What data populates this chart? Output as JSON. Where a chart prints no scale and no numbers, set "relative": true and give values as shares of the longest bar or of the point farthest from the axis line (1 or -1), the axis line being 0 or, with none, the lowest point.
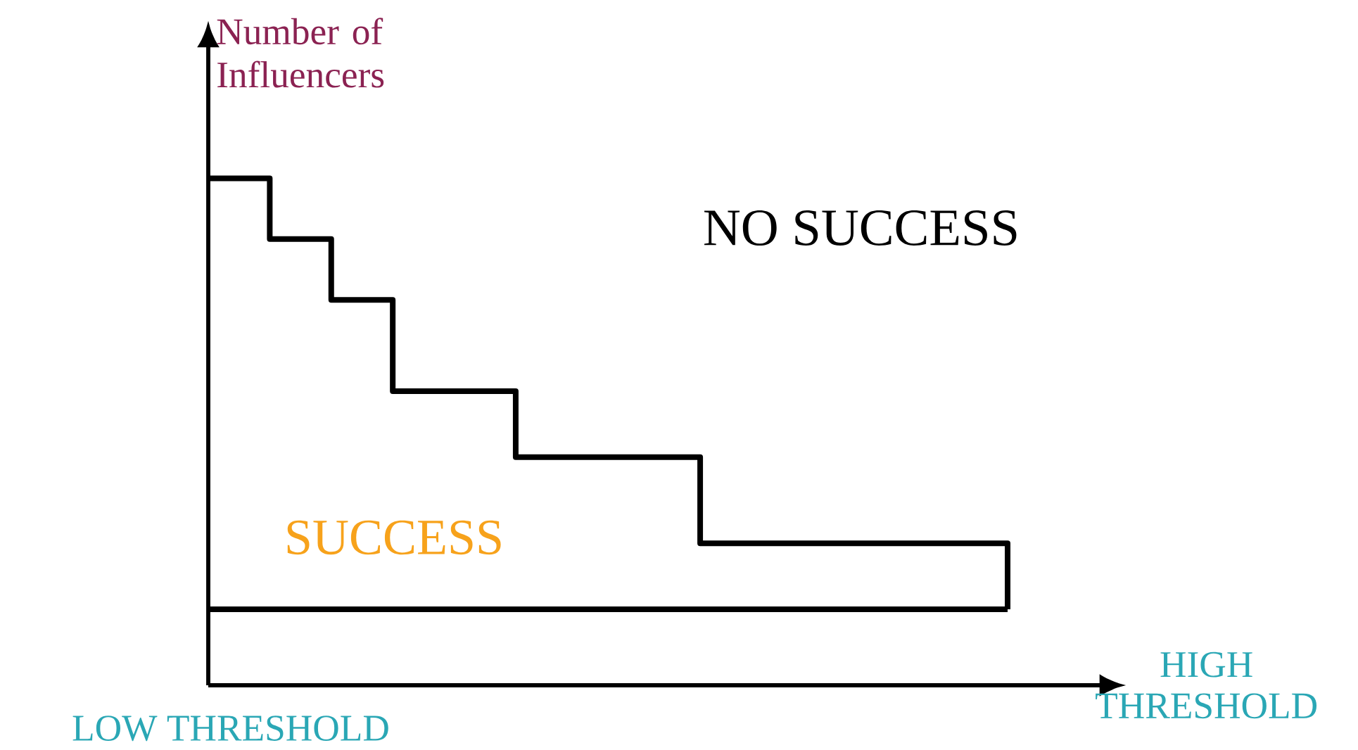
{
  "chart_data": {
    "type": "step",
    "relative": true,
    "xlabel": "HIGH THRESHOLD",
    "ylabel": "Number of Influencers",
    "categories": [
      null,
      null,
      null,
      null,
      null,
      null,
      null,
      null,
      null,
      null,
      null,
      null,
      null,
      null
    ],
    "series": [
      {
        "color": "#000000",
        "values": [
          1,
          0.88,
          0.76,
          0.58,
          0.58,
          0.45,
          0.45,
          0.45,
          0.28,
          0.28,
          0.28,
          0.28,
          0.28,
          0.15
        ]
      },
      {
        "type": "line",
        "color": "#000000",
        "values": [
          0.15,
          0.15,
          0.15,
          0.15,
          0.15,
          0.15,
          0.15,
          0.15,
          0.15,
          0.15,
          0.15,
          0.15,
          0.15,
          0.15
        ]
      }
    ],
    "annotations": [
      "NO SUCCESS",
      "SUCCESS",
      "LOW THRESHOLD"
    ]
  }
}
